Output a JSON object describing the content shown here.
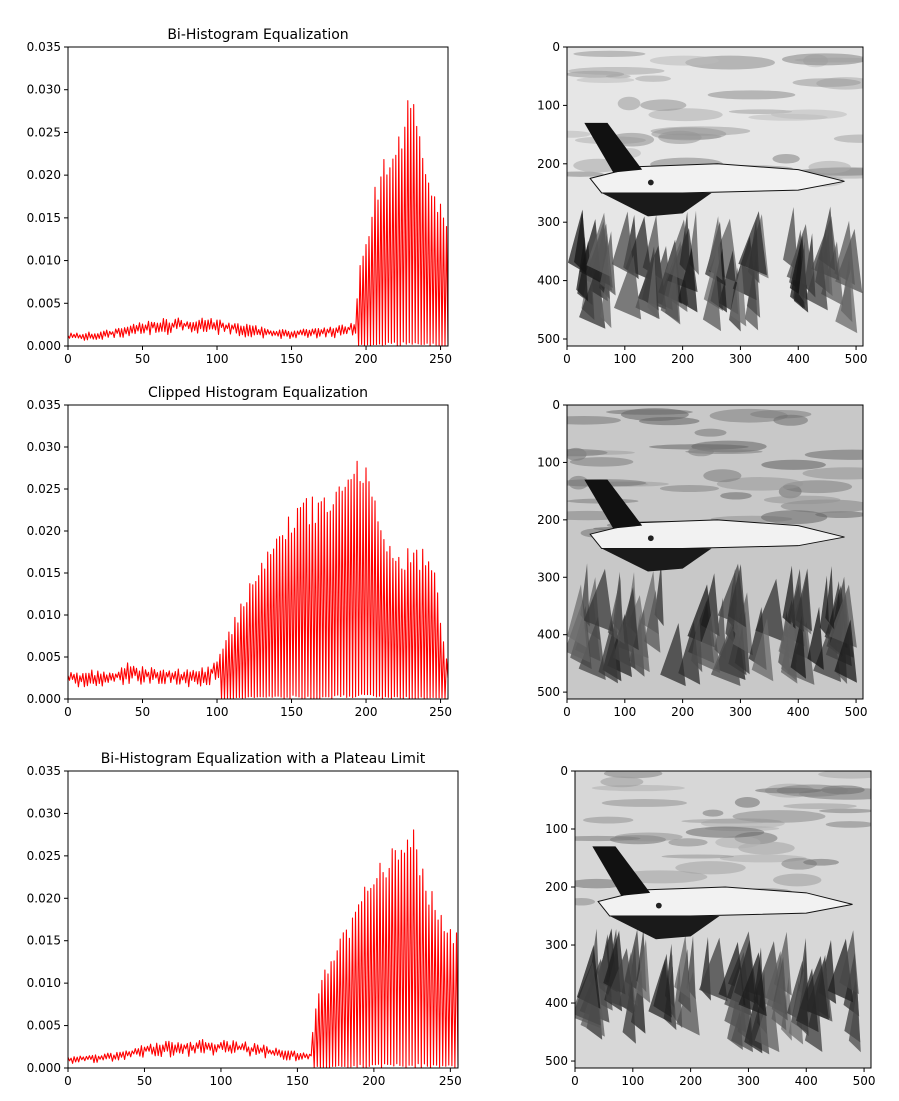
{
  "figure": {
    "colors": {
      "histogram_line": "#ff0000",
      "axes": "#000000",
      "background": "#ffffff"
    }
  },
  "chart_data": [
    {
      "type": "line",
      "title": "Bi-Histogram Equalization",
      "xlabel": "",
      "ylabel": "",
      "xlim": [
        0,
        255
      ],
      "ylim": [
        0,
        0.035
      ],
      "xticks": [
        "0",
        "50",
        "100",
        "150",
        "200",
        "250"
      ],
      "yticks": [
        "0.000",
        "0.005",
        "0.010",
        "0.015",
        "0.020",
        "0.025",
        "0.030",
        "0.035"
      ],
      "grid": false,
      "series": [
        {
          "profile": [
            [
              0,
              0.0015
            ],
            [
              20,
              0.0017
            ],
            [
              30,
              0.002
            ],
            [
              45,
              0.0028
            ],
            [
              60,
              0.0032
            ],
            [
              75,
              0.0033
            ],
            [
              90,
              0.0033
            ],
            [
              105,
              0.0031
            ],
            [
              120,
              0.0026
            ],
            [
              135,
              0.0021
            ],
            [
              150,
              0.002
            ],
            [
              170,
              0.0021
            ],
            [
              185,
              0.0025
            ],
            [
              193,
              0.003
            ],
            [
              195,
              0.009
            ],
            [
              200,
              0.012
            ],
            [
              205,
              0.018
            ],
            [
              210,
              0.021
            ],
            [
              215,
              0.024
            ],
            [
              220,
              0.024
            ],
            [
              225,
              0.027
            ],
            [
              230,
              0.03
            ],
            [
              235,
              0.026
            ],
            [
              240,
              0.023
            ],
            [
              245,
              0.018
            ],
            [
              250,
              0.017
            ],
            [
              255,
              0.016
            ]
          ]
        }
      ]
    },
    {
      "type": "image",
      "xlim": [
        0,
        512
      ],
      "ylim": [
        512,
        0
      ],
      "xticks": [
        "0",
        "100",
        "200",
        "300",
        "400",
        "500"
      ],
      "yticks": [
        "0",
        "100",
        "200",
        "300",
        "400",
        "500"
      ],
      "tone": "bright"
    },
    {
      "type": "line",
      "title": "Clipped Histogram Equalization",
      "xlabel": "",
      "ylabel": "",
      "xlim": [
        0,
        255
      ],
      "ylim": [
        0,
        0.035
      ],
      "xticks": [
        "0",
        "50",
        "100",
        "150",
        "200",
        "250"
      ],
      "yticks": [
        "0.000",
        "0.005",
        "0.010",
        "0.015",
        "0.020",
        "0.025",
        "0.030",
        "0.035"
      ],
      "grid": false,
      "series": [
        {
          "profile": [
            [
              0,
              0.0033
            ],
            [
              15,
              0.0035
            ],
            [
              30,
              0.0035
            ],
            [
              42,
              0.0045
            ],
            [
              50,
              0.004
            ],
            [
              65,
              0.0038
            ],
            [
              80,
              0.0035
            ],
            [
              90,
              0.0038
            ],
            [
              95,
              0.004
            ],
            [
              100,
              0.005
            ],
            [
              110,
              0.009
            ],
            [
              120,
              0.013
            ],
            [
              130,
              0.017
            ],
            [
              140,
              0.02
            ],
            [
              150,
              0.023
            ],
            [
              160,
              0.024
            ],
            [
              170,
              0.025
            ],
            [
              180,
              0.026
            ],
            [
              190,
              0.029
            ],
            [
              195,
              0.03
            ],
            [
              200,
              0.029
            ],
            [
              205,
              0.025
            ],
            [
              210,
              0.021
            ],
            [
              220,
              0.018
            ],
            [
              230,
              0.018
            ],
            [
              240,
              0.018
            ],
            [
              245,
              0.017
            ],
            [
              255,
              0.004
            ]
          ]
        }
      ]
    },
    {
      "type": "image",
      "xlim": [
        0,
        512
      ],
      "ylim": [
        512,
        0
      ],
      "xticks": [
        "0",
        "100",
        "200",
        "300",
        "400",
        "500"
      ],
      "yticks": [
        "0",
        "100",
        "200",
        "300",
        "400",
        "500"
      ],
      "tone": "dark"
    },
    {
      "type": "line",
      "title": "Bi-Histogram Equalization with a Plateau Limit",
      "xlabel": "",
      "ylabel": "",
      "xlim": [
        0,
        255
      ],
      "ylim": [
        0,
        0.035
      ],
      "xticks": [
        "0",
        "50",
        "100",
        "150",
        "200",
        "250"
      ],
      "yticks": [
        "0.000",
        "0.005",
        "0.010",
        "0.015",
        "0.020",
        "0.025",
        "0.030",
        "0.035"
      ],
      "grid": false,
      "series": [
        {
          "profile": [
            [
              0,
              0.0013
            ],
            [
              20,
              0.0016
            ],
            [
              35,
              0.002
            ],
            [
              50,
              0.0028
            ],
            [
              65,
              0.0032
            ],
            [
              80,
              0.0033
            ],
            [
              95,
              0.0034
            ],
            [
              110,
              0.0033
            ],
            [
              125,
              0.0028
            ],
            [
              140,
              0.0023
            ],
            [
              150,
              0.002
            ],
            [
              158,
              0.0018
            ],
            [
              162,
              0.008
            ],
            [
              168,
              0.012
            ],
            [
              175,
              0.014
            ],
            [
              185,
              0.018
            ],
            [
              195,
              0.022
            ],
            [
              205,
              0.026
            ],
            [
              212,
              0.026
            ],
            [
              218,
              0.029
            ],
            [
              222,
              0.03
            ],
            [
              228,
              0.028
            ],
            [
              235,
              0.023
            ],
            [
              242,
              0.019
            ],
            [
              248,
              0.018
            ],
            [
              255,
              0.016
            ]
          ]
        }
      ]
    },
    {
      "type": "image",
      "xlim": [
        0,
        512
      ],
      "ylim": [
        512,
        0
      ],
      "xticks": [
        "0",
        "100",
        "200",
        "300",
        "400",
        "500"
      ],
      "yticks": [
        "0",
        "100",
        "200",
        "300",
        "400",
        "500"
      ],
      "tone": "medium"
    }
  ]
}
